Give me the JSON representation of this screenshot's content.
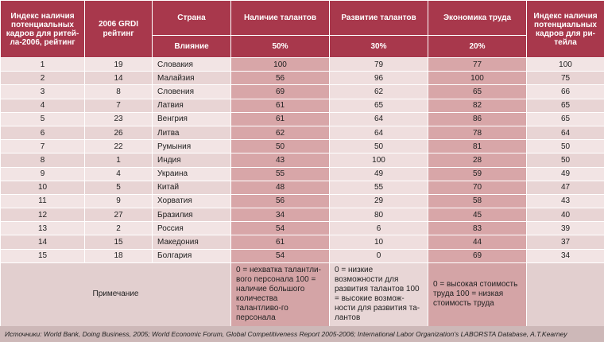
{
  "header": {
    "col1": "Индекс наличия потенциальных кадров для ритей-ла-2006, рейтинг",
    "col2": "2006 GRDI рейтинг",
    "col3": "Страна",
    "col4": "Наличие талантов",
    "col5": "Развитие талантов",
    "col6": "Экономика труда",
    "col7": "Индекс наличия потенциальных кадров для ри-тейла",
    "influence_label": "Влияние",
    "w4": "50%",
    "w5": "30%",
    "w6": "20%"
  },
  "rows": [
    {
      "rank": "1",
      "grdi": "19",
      "country": "Словакия",
      "talent": "100",
      "development": "79",
      "economy": "77",
      "index": "100"
    },
    {
      "rank": "2",
      "grdi": "14",
      "country": "Малайзия",
      "talent": "56",
      "development": "96",
      "economy": "100",
      "index": "75"
    },
    {
      "rank": "3",
      "grdi": "8",
      "country": "Словения",
      "talent": "69",
      "development": "62",
      "economy": "65",
      "index": "66"
    },
    {
      "rank": "4",
      "grdi": "7",
      "country": "Латвия",
      "talent": "61",
      "development": "65",
      "economy": "82",
      "index": "65"
    },
    {
      "rank": "5",
      "grdi": "23",
      "country": "Венгрия",
      "talent": "61",
      "development": "64",
      "economy": "86",
      "index": "65"
    },
    {
      "rank": "6",
      "grdi": "26",
      "country": "Литва",
      "talent": "62",
      "development": "64",
      "economy": "78",
      "index": "64"
    },
    {
      "rank": "7",
      "grdi": "22",
      "country": "Румыния",
      "talent": "50",
      "development": "50",
      "economy": "81",
      "index": "50"
    },
    {
      "rank": "8",
      "grdi": "1",
      "country": "Индия",
      "talent": "43",
      "development": "100",
      "economy": "28",
      "index": "50"
    },
    {
      "rank": "9",
      "grdi": "4",
      "country": "Украина",
      "talent": "55",
      "development": "49",
      "economy": "59",
      "index": "49"
    },
    {
      "rank": "10",
      "grdi": "5",
      "country": "Китай",
      "talent": "48",
      "development": "55",
      "economy": "70",
      "index": "47"
    },
    {
      "rank": "11",
      "grdi": "9",
      "country": "Хорватия",
      "talent": "56",
      "development": "29",
      "economy": "58",
      "index": "43"
    },
    {
      "rank": "12",
      "grdi": "27",
      "country": "Бразилия",
      "talent": "34",
      "development": "80",
      "economy": "45",
      "index": "40"
    },
    {
      "rank": "13",
      "grdi": "2",
      "country": "Россия",
      "talent": "54",
      "development": "6",
      "economy": "83",
      "index": "39"
    },
    {
      "rank": "14",
      "grdi": "15",
      "country": "Македония",
      "talent": "61",
      "development": "10",
      "economy": "44",
      "index": "37"
    },
    {
      "rank": "15",
      "grdi": "18",
      "country": "Болгария",
      "talent": "54",
      "development": "0",
      "economy": "69",
      "index": "34"
    }
  ],
  "note": {
    "label": "Примечание",
    "talent": "0 = нехватка талантли-вого персонала 100 = наличие большого количества талантливо-го персонала",
    "development": "0 = низкие возможности для развития талантов 100 = высокие возмож-ности для развития та-лантов",
    "economy": "0 = высокая стоимость труда 100 = низкая стоимость труда"
  },
  "source": "Источники: World Bank, Doing Business, 2005; World Economic Forum, Global Competitiveness Report 2005-2006; International Labor Organization's LABORSTA Database, A.T.Kearney"
}
